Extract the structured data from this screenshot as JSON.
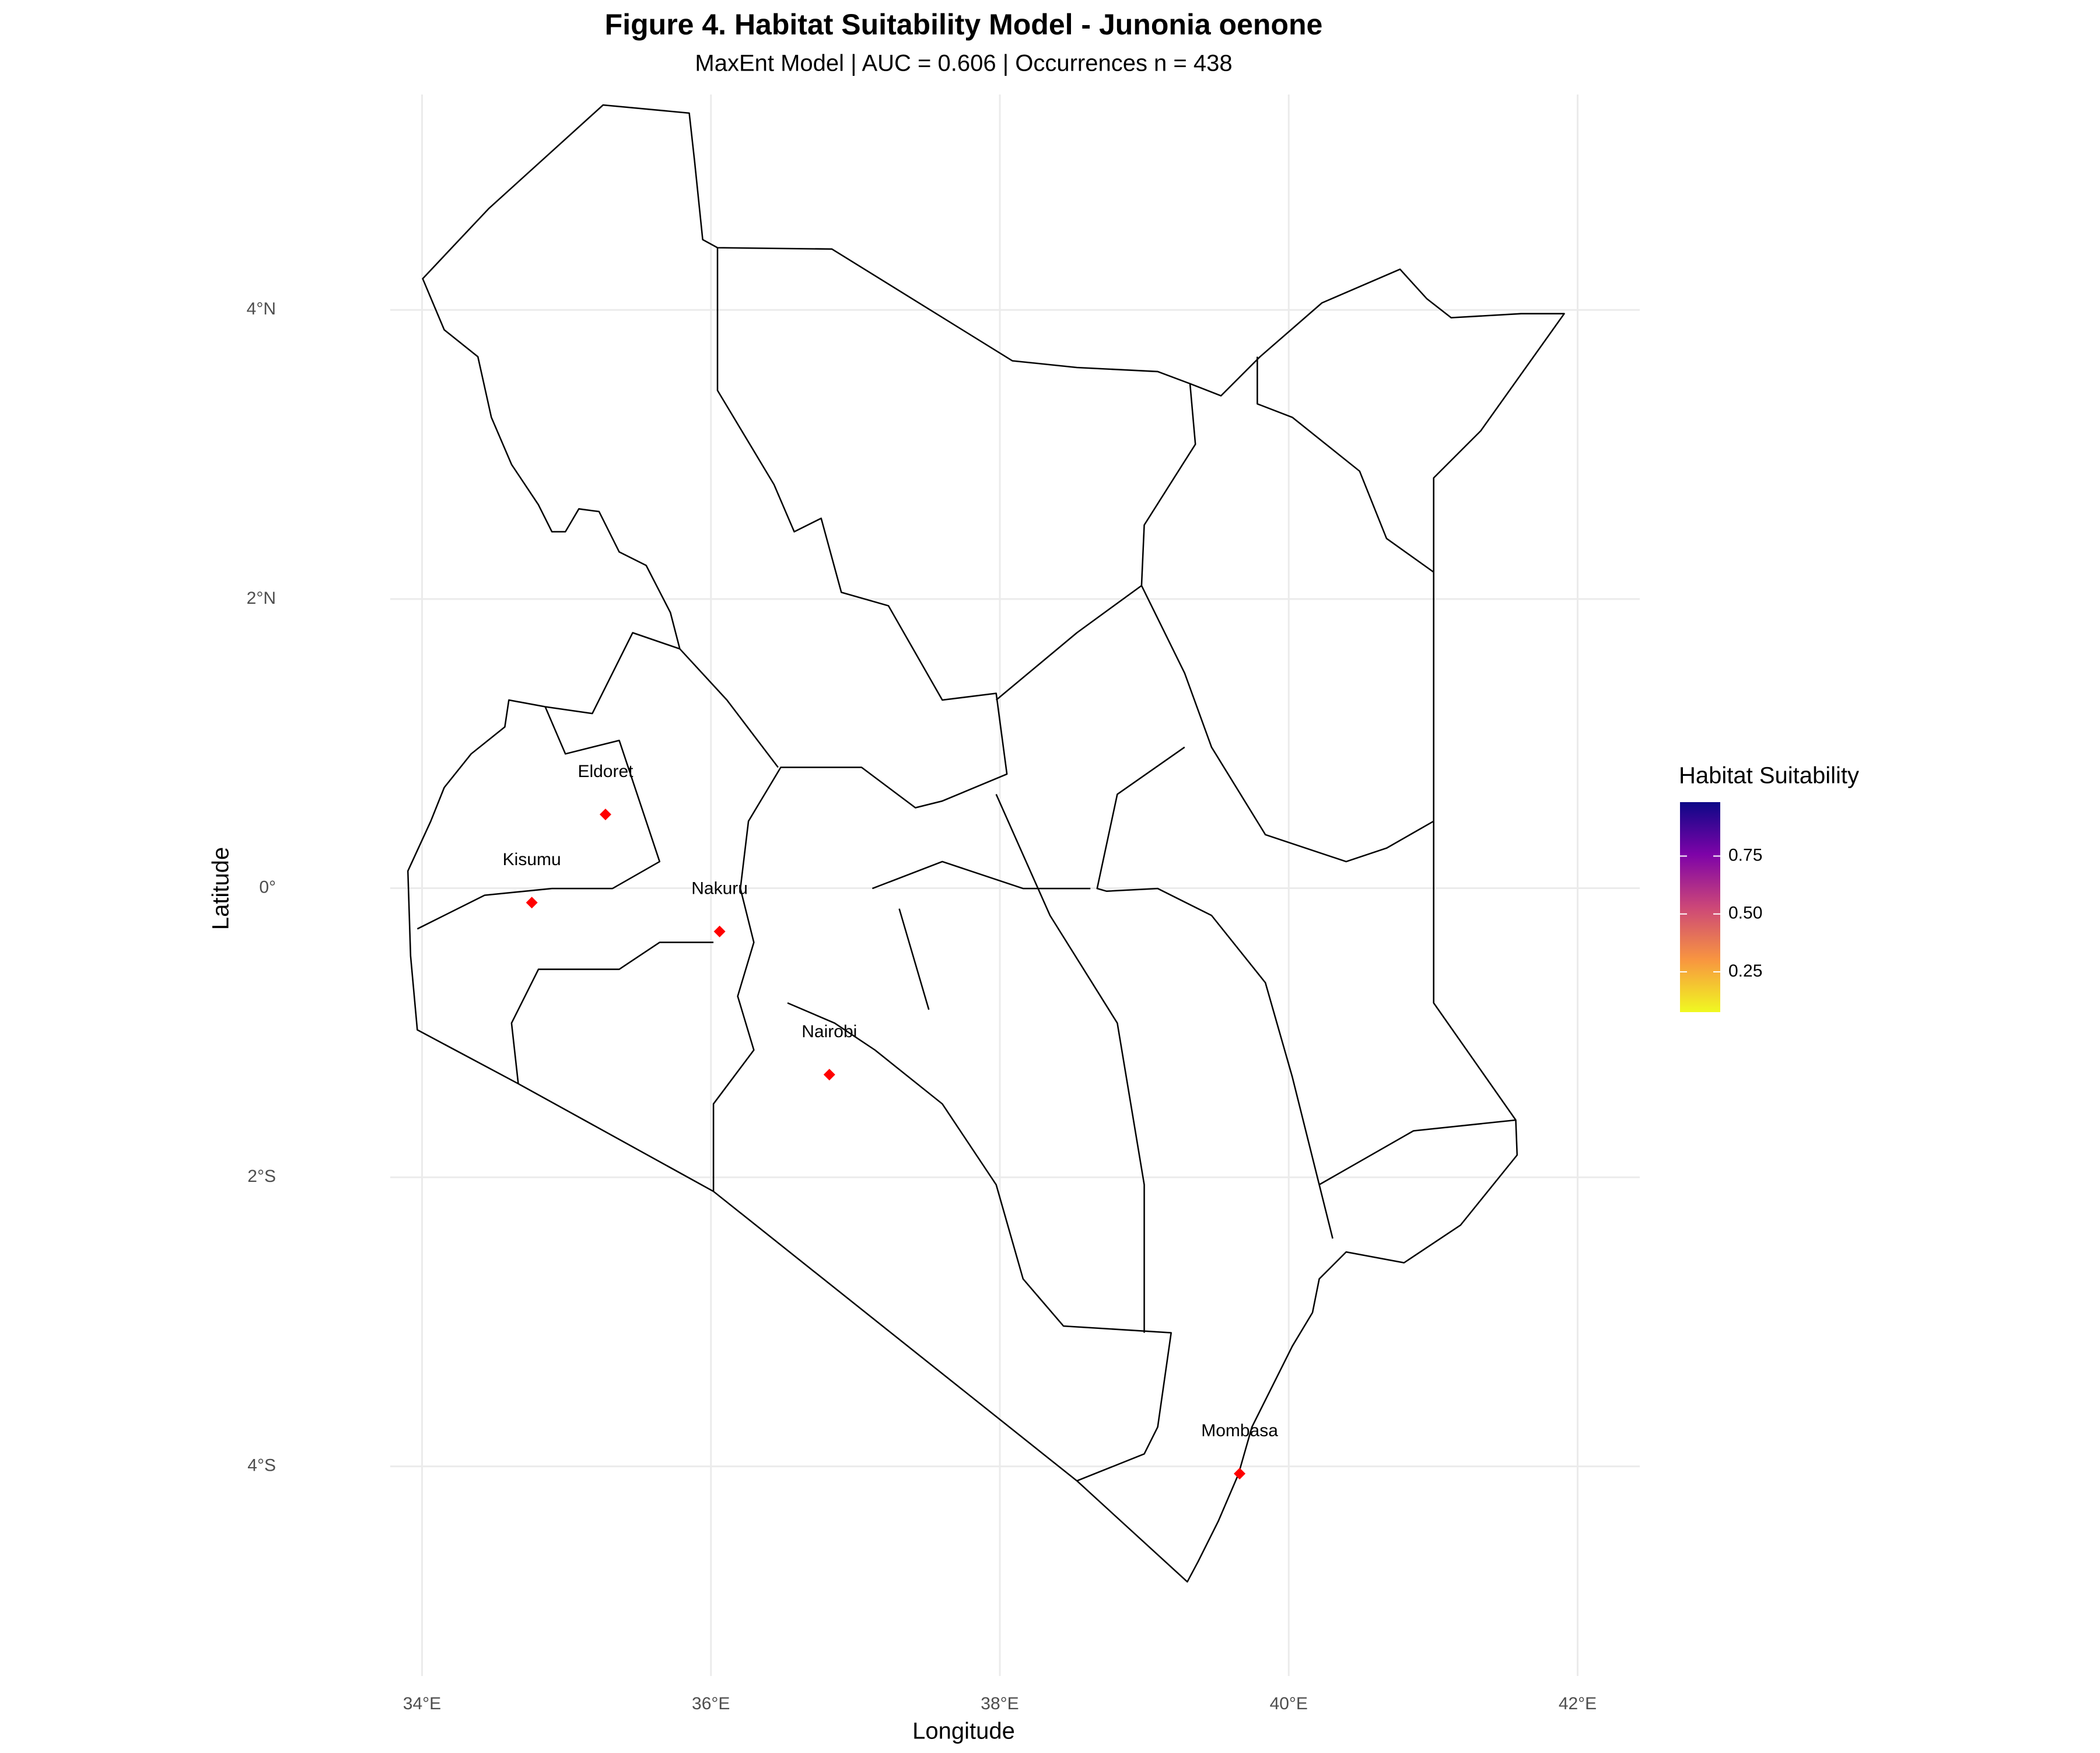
{
  "chart_data": {
    "type": "map",
    "title": "Figure 4. Habitat Suitability Model - Junonia oenone",
    "subtitle": "MaxEnt Model | AUC = 0.606 | Occurrences n = 438",
    "x_label": "Longitude",
    "y_label": "Latitude",
    "xlim": [
      33.78,
      42.43
    ],
    "ylim": [
      -5.45,
      5.49
    ],
    "xticks": [
      {
        "value": 34,
        "label": "34°E"
      },
      {
        "value": 36,
        "label": "36°E"
      },
      {
        "value": 38,
        "label": "38°E"
      },
      {
        "value": 40,
        "label": "40°E"
      },
      {
        "value": 42,
        "label": "42°E"
      }
    ],
    "yticks": [
      {
        "value": 4,
        "label": "4°N"
      },
      {
        "value": 2,
        "label": "2°N"
      },
      {
        "value": 0,
        "label": "0°"
      },
      {
        "value": -2,
        "label": "2°S"
      },
      {
        "value": -4,
        "label": "4°S"
      }
    ],
    "grid": true,
    "points": {
      "names": [
        "Eldoret",
        "Kisumu",
        "Nakuru",
        "Nairobi",
        "Mombasa"
      ],
      "lon": [
        35.27,
        34.76,
        36.06,
        36.82,
        39.66
      ],
      "lat": [
        0.51,
        -0.1,
        -0.3,
        -1.29,
        -4.05
      ],
      "color": "#ff0000"
    },
    "legend": {
      "title": "Habitat Suitability",
      "lim": [
        0.076,
        0.983
      ],
      "ticks": [
        {
          "value": 0.25,
          "label": "0.25"
        },
        {
          "value": 0.5,
          "label": "0.50"
        },
        {
          "value": 0.75,
          "label": "0.75"
        }
      ],
      "colors": [
        "#f0f921",
        "#f89540",
        "#cc4778",
        "#7e03a8",
        "#0d0887"
      ]
    }
  }
}
